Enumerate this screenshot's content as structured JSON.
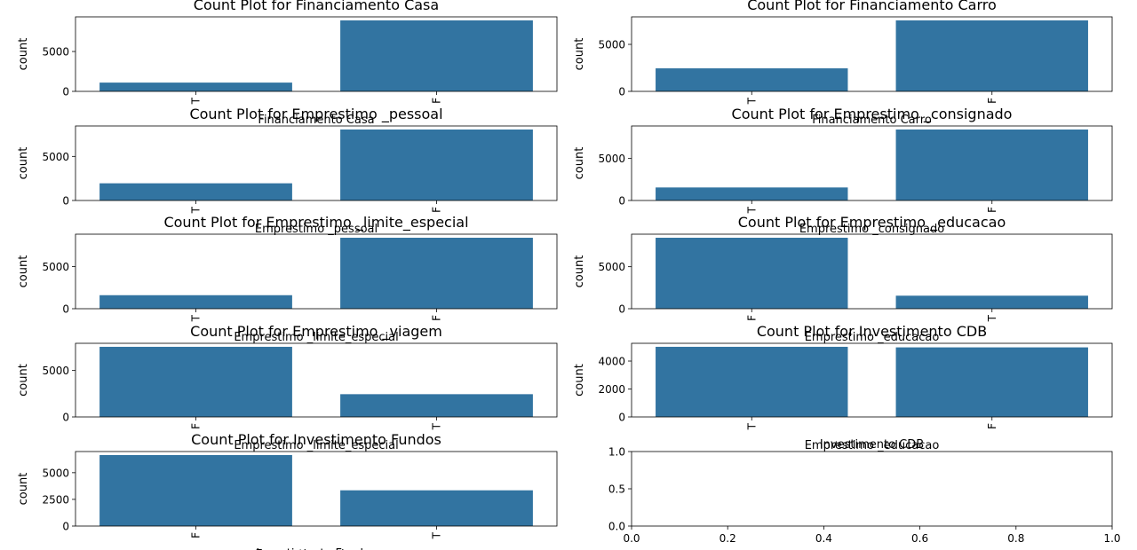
{
  "chart_data": [
    {
      "type": "bar",
      "title": "Count Plot for Financiamento Casa",
      "xlabel": "Financiamento Casa",
      "ylabel": "count",
      "categories": [
        "T",
        "F"
      ],
      "values": [
        1100,
        8900
      ],
      "yticks": [
        0,
        5000
      ],
      "ylim": [
        0,
        9345
      ],
      "color": "#3274a1"
    },
    {
      "type": "bar",
      "title": "Count Plot for Financiamento Carro",
      "xlabel": "Financiamento Carro",
      "ylabel": "count",
      "categories": [
        "T",
        "F"
      ],
      "values": [
        2450,
        7550
      ],
      "yticks": [
        0,
        5000
      ],
      "ylim": [
        0,
        7928
      ],
      "color": "#3274a1"
    },
    {
      "type": "bar",
      "title": "Count Plot for Emprestimo _pessoal",
      "xlabel": "Emprestimo _pessoal",
      "ylabel": "count",
      "categories": [
        "T",
        "F"
      ],
      "values": [
        1950,
        8050
      ],
      "yticks": [
        0,
        5000
      ],
      "ylim": [
        0,
        8453
      ],
      "color": "#3274a1"
    },
    {
      "type": "bar",
      "title": "Count Plot for Emprestimo _consignado",
      "xlabel": "Emprestimo _consignado",
      "ylabel": "count",
      "categories": [
        "T",
        "F"
      ],
      "values": [
        1550,
        8450
      ],
      "yticks": [
        0,
        5000
      ],
      "ylim": [
        0,
        8873
      ],
      "color": "#3274a1"
    },
    {
      "type": "bar",
      "title": "Count Plot for Emprestimo _limite_especial",
      "xlabel": "Emprestimo _limite_especial",
      "ylabel": "count",
      "categories": [
        "T",
        "F"
      ],
      "values": [
        1600,
        8400
      ],
      "yticks": [
        0,
        5000
      ],
      "ylim": [
        0,
        8820
      ],
      "color": "#3274a1"
    },
    {
      "type": "bar",
      "title": "Count Plot for Emprestimo _educacao",
      "xlabel": "Emprestimo _educacao",
      "ylabel": "count",
      "categories": [
        "F",
        "T"
      ],
      "values": [
        8450,
        1550
      ],
      "yticks": [
        0,
        5000
      ],
      "ylim": [
        0,
        8873
      ],
      "color": "#3274a1"
    },
    {
      "type": "bar",
      "title": "Count Plot for Emprestimo _viagem",
      "xlabel": "Emprestimo _limite_especial",
      "ylabel": "count",
      "categories": [
        "F",
        "T"
      ],
      "values": [
        7550,
        2450
      ],
      "yticks": [
        0,
        5000
      ],
      "ylim": [
        0,
        7928
      ],
      "color": "#3274a1"
    },
    {
      "type": "bar",
      "title": "Count Plot for Investimento CDB",
      "xlabel": "Emprestimo _educacao",
      "ylabel": "count",
      "categories": [
        "T",
        "F"
      ],
      "values": [
        5020,
        4980
      ],
      "yticks": [
        0,
        2000,
        4000
      ],
      "ylim": [
        0,
        5271
      ],
      "color": "#3274a1"
    },
    {
      "type": "bar",
      "title": "Count Plot for Investimento Fundos",
      "xlabel": "Emprestimo _viagem",
      "ylabel": "count",
      "categories": [
        "F",
        "T"
      ],
      "values": [
        6650,
        3350
      ],
      "yticks": [
        0,
        2500,
        5000
      ],
      "ylim": [
        0,
        6983
      ],
      "color": "#3274a1"
    },
    {
      "type": "empty",
      "title": "",
      "xlabel": "Investimento CDB",
      "ylabel": "",
      "xticks": [
        "0.0",
        "0.2",
        "0.4",
        "0.6",
        "0.8",
        "1.0"
      ],
      "yticks": [
        "0.0",
        "0.5",
        "1.0"
      ]
    }
  ],
  "hidden_xlabel": "Investimento Fundos"
}
